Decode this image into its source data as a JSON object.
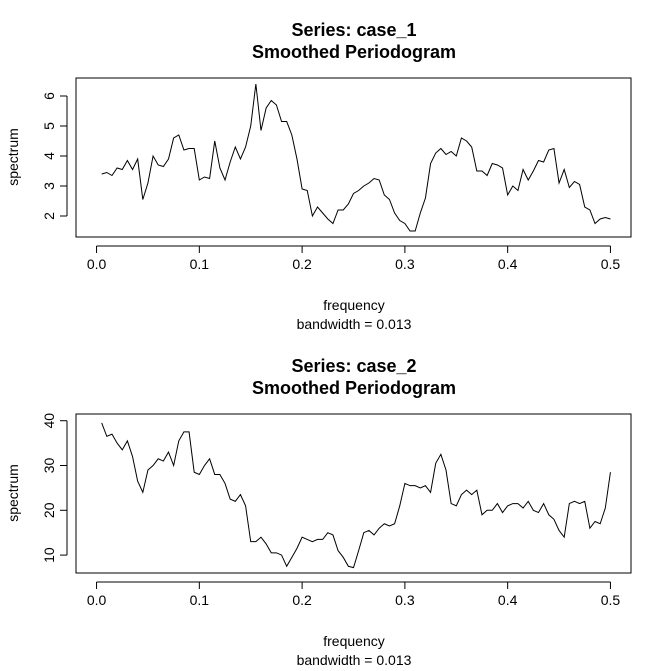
{
  "chart_data": [
    {
      "type": "line",
      "title": "Series: case_1",
      "subtitle": "Smoothed Periodogram",
      "xlabel": "frequency",
      "sublabel": "bandwidth = 0.013",
      "ylabel": "spectrum",
      "xlim": [
        -0.02,
        0.52
      ],
      "ylim": [
        1.3,
        6.6
      ],
      "xticks": [
        0.0,
        0.1,
        0.2,
        0.3,
        0.4,
        0.5
      ],
      "xtick_labels": [
        "0.0",
        "0.1",
        "0.2",
        "0.3",
        "0.4",
        "0.5"
      ],
      "yticks": [
        2,
        3,
        4,
        5,
        6
      ],
      "ytick_labels": [
        "2",
        "3",
        "4",
        "5",
        "6"
      ],
      "x": [
        0.005,
        0.01,
        0.015,
        0.02,
        0.025,
        0.03,
        0.035,
        0.04,
        0.045,
        0.05,
        0.055,
        0.06,
        0.065,
        0.07,
        0.075,
        0.08,
        0.085,
        0.09,
        0.095,
        0.1,
        0.105,
        0.11,
        0.115,
        0.12,
        0.125,
        0.13,
        0.135,
        0.14,
        0.145,
        0.15,
        0.155,
        0.16,
        0.165,
        0.17,
        0.175,
        0.18,
        0.185,
        0.19,
        0.195,
        0.2,
        0.205,
        0.21,
        0.215,
        0.22,
        0.225,
        0.23,
        0.235,
        0.24,
        0.245,
        0.25,
        0.255,
        0.26,
        0.265,
        0.27,
        0.275,
        0.28,
        0.285,
        0.29,
        0.295,
        0.3,
        0.305,
        0.31,
        0.315,
        0.32,
        0.325,
        0.33,
        0.335,
        0.34,
        0.345,
        0.35,
        0.355,
        0.36,
        0.365,
        0.37,
        0.375,
        0.38,
        0.385,
        0.39,
        0.395,
        0.4,
        0.405,
        0.41,
        0.415,
        0.42,
        0.425,
        0.43,
        0.435,
        0.44,
        0.445,
        0.45,
        0.455,
        0.46,
        0.465,
        0.47,
        0.475,
        0.48,
        0.485,
        0.49,
        0.495,
        0.5
      ],
      "y": [
        3.4,
        3.45,
        3.35,
        3.6,
        3.55,
        3.85,
        3.55,
        3.9,
        2.55,
        3.1,
        4.0,
        3.7,
        3.65,
        3.9,
        4.6,
        4.7,
        4.2,
        4.25,
        4.25,
        3.2,
        3.3,
        3.25,
        4.5,
        3.6,
        3.2,
        3.8,
        4.3,
        3.9,
        4.3,
        5.0,
        6.4,
        4.85,
        5.6,
        5.85,
        5.7,
        5.15,
        5.15,
        4.7,
        3.9,
        2.9,
        2.85,
        2.0,
        2.3,
        2.1,
        1.9,
        1.75,
        2.2,
        2.2,
        2.4,
        2.75,
        2.85,
        3.0,
        3.1,
        3.25,
        3.2,
        2.7,
        2.55,
        2.1,
        1.85,
        1.75,
        1.5,
        1.5,
        2.1,
        2.6,
        3.75,
        4.1,
        4.25,
        4.05,
        4.15,
        4.0,
        4.6,
        4.5,
        4.3,
        3.5,
        3.5,
        3.35,
        3.75,
        3.7,
        3.6,
        2.7,
        3.0,
        2.85,
        3.55,
        3.2,
        3.5,
        3.85,
        3.8,
        4.2,
        4.25,
        3.1,
        3.55,
        2.95,
        3.15,
        3.05,
        2.3,
        2.2,
        1.75,
        1.9,
        1.95,
        1.9
      ]
    },
    {
      "type": "line",
      "title": "Series: case_2",
      "subtitle": "Smoothed Periodogram",
      "xlabel": "frequency",
      "sublabel": "bandwidth = 0.013",
      "ylabel": "spectrum",
      "xlim": [
        -0.02,
        0.52
      ],
      "ylim": [
        6.0,
        41.5
      ],
      "xticks": [
        0.0,
        0.1,
        0.2,
        0.3,
        0.4,
        0.5
      ],
      "xtick_labels": [
        "0.0",
        "0.1",
        "0.2",
        "0.3",
        "0.4",
        "0.5"
      ],
      "yticks": [
        10,
        20,
        30,
        40
      ],
      "ytick_labels": [
        "10",
        "20",
        "30",
        "40"
      ],
      "x": [
        0.005,
        0.01,
        0.015,
        0.02,
        0.025,
        0.03,
        0.035,
        0.04,
        0.045,
        0.05,
        0.055,
        0.06,
        0.065,
        0.07,
        0.075,
        0.08,
        0.085,
        0.09,
        0.095,
        0.1,
        0.105,
        0.11,
        0.115,
        0.12,
        0.125,
        0.13,
        0.135,
        0.14,
        0.145,
        0.15,
        0.155,
        0.16,
        0.165,
        0.17,
        0.175,
        0.18,
        0.185,
        0.19,
        0.195,
        0.2,
        0.205,
        0.21,
        0.215,
        0.22,
        0.225,
        0.23,
        0.235,
        0.24,
        0.245,
        0.25,
        0.255,
        0.26,
        0.265,
        0.27,
        0.275,
        0.28,
        0.285,
        0.29,
        0.295,
        0.3,
        0.305,
        0.31,
        0.315,
        0.32,
        0.325,
        0.33,
        0.335,
        0.34,
        0.345,
        0.35,
        0.355,
        0.36,
        0.365,
        0.37,
        0.375,
        0.38,
        0.385,
        0.39,
        0.395,
        0.4,
        0.405,
        0.41,
        0.415,
        0.42,
        0.425,
        0.43,
        0.435,
        0.44,
        0.445,
        0.45,
        0.455,
        0.46,
        0.465,
        0.47,
        0.475,
        0.48,
        0.485,
        0.49,
        0.495,
        0.5
      ],
      "y": [
        39.5,
        36.5,
        37.0,
        35.0,
        33.5,
        35.5,
        32.0,
        26.5,
        24.0,
        29.0,
        30.0,
        31.5,
        31.0,
        33.0,
        30.0,
        35.5,
        37.5,
        37.5,
        28.5,
        28.0,
        30.0,
        31.5,
        28.0,
        28.0,
        26.0,
        22.5,
        22.0,
        23.5,
        21.0,
        13.0,
        13.0,
        14.0,
        12.5,
        10.5,
        10.5,
        10.0,
        7.5,
        9.5,
        11.5,
        14.0,
        13.5,
        13.0,
        13.5,
        13.5,
        15.0,
        14.5,
        11.0,
        9.5,
        7.5,
        7.2,
        11.0,
        15.0,
        15.5,
        14.5,
        16.0,
        17.0,
        16.5,
        17.0,
        21.0,
        26.0,
        25.5,
        25.5,
        25.0,
        25.5,
        24.0,
        30.5,
        32.5,
        29.0,
        21.5,
        21.0,
        23.5,
        24.5,
        23.5,
        24.5,
        19.0,
        20.0,
        20.0,
        21.5,
        19.5,
        21.0,
        21.5,
        21.5,
        20.5,
        22.0,
        20.0,
        19.5,
        21.5,
        19.0,
        18.0,
        15.5,
        14.0,
        21.5,
        22.0,
        21.5,
        22.0,
        16.0,
        17.5,
        17.0,
        20.5,
        28.5
      ]
    }
  ]
}
